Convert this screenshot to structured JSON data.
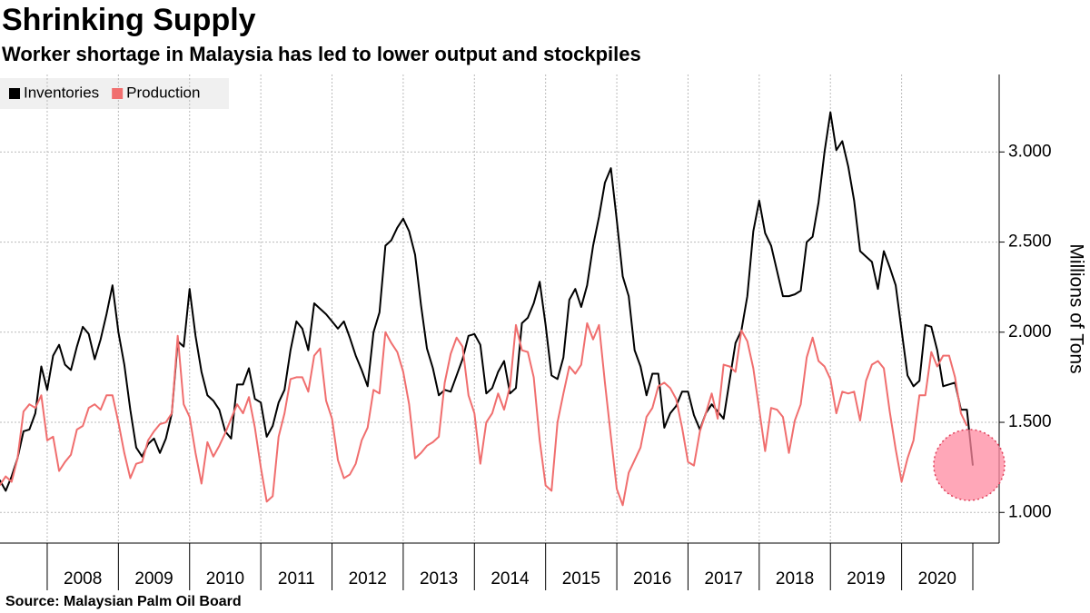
{
  "chart_data": {
    "type": "line",
    "title": "Shrinking Supply",
    "subtitle": "Worker shortage in Malaysia has led to lower output and stockpiles",
    "y_label": "Millions of Tons",
    "source": "Source: Malaysian Palm Oil Board",
    "xlim": [
      2007.337,
      2021.37
    ],
    "ylim": [
      0.83,
      3.43
    ],
    "grid": true,
    "legend": "top-left",
    "xticks": [
      {
        "value": 2008,
        "label": "2008"
      },
      {
        "value": 2009,
        "label": "2009"
      },
      {
        "value": 2010,
        "label": "2010"
      },
      {
        "value": 2011,
        "label": "2011"
      },
      {
        "value": 2012,
        "label": "2012"
      },
      {
        "value": 2013,
        "label": "2013"
      },
      {
        "value": 2014,
        "label": "2014"
      },
      {
        "value": 2015,
        "label": "2015"
      },
      {
        "value": 2016,
        "label": "2016"
      },
      {
        "value": 2017,
        "label": "2017"
      },
      {
        "value": 2018,
        "label": "2018"
      },
      {
        "value": 2019,
        "label": "2019"
      },
      {
        "value": 2020,
        "label": "2020"
      }
    ],
    "yticks": [
      {
        "value": 1,
        "label": "1.000"
      },
      {
        "value": 1.5,
        "label": "1.500"
      },
      {
        "value": 2,
        "label": "2.000"
      },
      {
        "value": 2.5,
        "label": "2.500"
      },
      {
        "value": 3,
        "label": "3.000"
      }
    ],
    "x": [
      2007.333,
      2007.417,
      2007.5,
      2007.583,
      2007.667,
      2007.75,
      2007.833,
      2007.917,
      2008,
      2008.083,
      2008.167,
      2008.25,
      2008.333,
      2008.417,
      2008.5,
      2008.583,
      2008.667,
      2008.75,
      2008.833,
      2008.917,
      2009,
      2009.083,
      2009.167,
      2009.25,
      2009.333,
      2009.417,
      2009.5,
      2009.583,
      2009.667,
      2009.75,
      2009.833,
      2009.917,
      2010,
      2010.083,
      2010.167,
      2010.25,
      2010.333,
      2010.417,
      2010.5,
      2010.583,
      2010.667,
      2010.75,
      2010.833,
      2010.917,
      2011,
      2011.083,
      2011.167,
      2011.25,
      2011.333,
      2011.417,
      2011.5,
      2011.583,
      2011.667,
      2011.75,
      2011.833,
      2011.917,
      2012,
      2012.083,
      2012.167,
      2012.25,
      2012.333,
      2012.417,
      2012.5,
      2012.583,
      2012.667,
      2012.75,
      2012.833,
      2012.917,
      2013,
      2013.083,
      2013.167,
      2013.25,
      2013.333,
      2013.417,
      2013.5,
      2013.583,
      2013.667,
      2013.75,
      2013.833,
      2013.917,
      2014,
      2014.083,
      2014.167,
      2014.25,
      2014.333,
      2014.417,
      2014.5,
      2014.583,
      2014.667,
      2014.75,
      2014.833,
      2014.917,
      2015,
      2015.083,
      2015.167,
      2015.25,
      2015.333,
      2015.417,
      2015.5,
      2015.583,
      2015.667,
      2015.75,
      2015.833,
      2015.917,
      2016,
      2016.083,
      2016.167,
      2016.25,
      2016.333,
      2016.417,
      2016.5,
      2016.583,
      2016.667,
      2016.75,
      2016.833,
      2016.917,
      2017,
      2017.083,
      2017.167,
      2017.25,
      2017.333,
      2017.417,
      2017.5,
      2017.583,
      2017.667,
      2017.75,
      2017.833,
      2017.917,
      2018,
      2018.083,
      2018.167,
      2018.25,
      2018.333,
      2018.417,
      2018.5,
      2018.583,
      2018.667,
      2018.75,
      2018.833,
      2018.917,
      2019,
      2019.083,
      2019.167,
      2019.25,
      2019.333,
      2019.417,
      2019.5,
      2019.583,
      2019.667,
      2019.75,
      2019.833,
      2019.917,
      2020,
      2020.083,
      2020.167,
      2020.25,
      2020.333,
      2020.417,
      2020.5,
      2020.583,
      2020.667,
      2020.75,
      2020.833,
      2020.917,
      2021
    ],
    "series": [
      {
        "name": "Inventories",
        "color": "#000000",
        "values": [
          1.18,
          1.12,
          1.2,
          1.3,
          1.45,
          1.46,
          1.55,
          1.81,
          1.68,
          1.87,
          1.93,
          1.82,
          1.79,
          1.92,
          2.03,
          1.99,
          1.85,
          1.96,
          2.1,
          2.26,
          2.0,
          1.82,
          1.57,
          1.36,
          1.31,
          1.38,
          1.41,
          1.33,
          1.41,
          1.55,
          1.95,
          1.92,
          2.24,
          1.98,
          1.78,
          1.65,
          1.62,
          1.57,
          1.45,
          1.41,
          1.71,
          1.71,
          1.8,
          1.63,
          1.61,
          1.42,
          1.48,
          1.61,
          1.68,
          1.9,
          2.06,
          2.02,
          1.9,
          2.16,
          2.13,
          2.1,
          2.06,
          2.02,
          2.06,
          1.97,
          1.87,
          1.79,
          1.7,
          2.0,
          2.11,
          2.48,
          2.51,
          2.58,
          2.63,
          2.56,
          2.43,
          2.15,
          1.91,
          1.8,
          1.65,
          1.68,
          1.67,
          1.76,
          1.85,
          1.98,
          1.99,
          1.93,
          1.66,
          1.69,
          1.78,
          1.84,
          1.66,
          1.69,
          2.05,
          2.08,
          2.16,
          2.28,
          2.04,
          1.76,
          1.74,
          1.86,
          2.18,
          2.24,
          2.14,
          2.26,
          2.48,
          2.64,
          2.83,
          2.91,
          2.62,
          2.31,
          2.2,
          1.9,
          1.81,
          1.65,
          1.77,
          1.77,
          1.47,
          1.55,
          1.59,
          1.67,
          1.67,
          1.54,
          1.46,
          1.55,
          1.6,
          1.56,
          1.52,
          1.73,
          1.94,
          2.01,
          2.2,
          2.56,
          2.73,
          2.55,
          2.48,
          2.34,
          2.2,
          2.2,
          2.21,
          2.23,
          2.5,
          2.53,
          2.72,
          3.0,
          3.22,
          3.01,
          3.06,
          2.92,
          2.73,
          2.45,
          2.42,
          2.39,
          2.24,
          2.45,
          2.36,
          2.26,
          2.01,
          1.76,
          1.7,
          1.73,
          2.04,
          2.03,
          1.9,
          1.7,
          1.71,
          1.72,
          1.57,
          1.57,
          1.26
        ]
      },
      {
        "name": "Production",
        "color": "#f06e6e",
        "values": [
          1.15,
          1.2,
          1.17,
          1.3,
          1.56,
          1.6,
          1.58,
          1.65,
          1.4,
          1.42,
          1.23,
          1.28,
          1.32,
          1.46,
          1.48,
          1.58,
          1.6,
          1.57,
          1.65,
          1.65,
          1.5,
          1.33,
          1.19,
          1.27,
          1.28,
          1.4,
          1.45,
          1.49,
          1.5,
          1.55,
          1.98,
          1.6,
          1.53,
          1.33,
          1.16,
          1.39,
          1.31,
          1.37,
          1.44,
          1.52,
          1.6,
          1.55,
          1.64,
          1.47,
          1.25,
          1.06,
          1.09,
          1.42,
          1.55,
          1.74,
          1.75,
          1.75,
          1.67,
          1.87,
          1.91,
          1.62,
          1.52,
          1.29,
          1.19,
          1.21,
          1.27,
          1.4,
          1.47,
          1.68,
          1.66,
          2.0,
          1.94,
          1.89,
          1.78,
          1.6,
          1.3,
          1.33,
          1.37,
          1.39,
          1.42,
          1.72,
          1.88,
          1.97,
          1.92,
          1.65,
          1.55,
          1.27,
          1.5,
          1.55,
          1.66,
          1.57,
          1.7,
          2.04,
          1.9,
          1.89,
          1.75,
          1.4,
          1.15,
          1.12,
          1.5,
          1.66,
          1.81,
          1.77,
          1.82,
          2.05,
          1.96,
          2.04,
          1.72,
          1.42,
          1.13,
          1.04,
          1.22,
          1.29,
          1.36,
          1.53,
          1.58,
          1.7,
          1.72,
          1.69,
          1.63,
          1.47,
          1.28,
          1.26,
          1.45,
          1.55,
          1.66,
          1.52,
          1.82,
          1.81,
          1.78,
          2.01,
          1.95,
          1.8,
          1.57,
          1.34,
          1.58,
          1.57,
          1.53,
          1.33,
          1.51,
          1.6,
          1.86,
          1.97,
          1.84,
          1.81,
          1.74,
          1.55,
          1.67,
          1.66,
          1.67,
          1.51,
          1.73,
          1.82,
          1.84,
          1.8,
          1.56,
          1.35,
          1.17,
          1.3,
          1.4,
          1.65,
          1.65,
          1.89,
          1.81,
          1.87,
          1.87,
          1.75,
          1.55,
          1.48,
          null
        ]
      }
    ]
  }
}
